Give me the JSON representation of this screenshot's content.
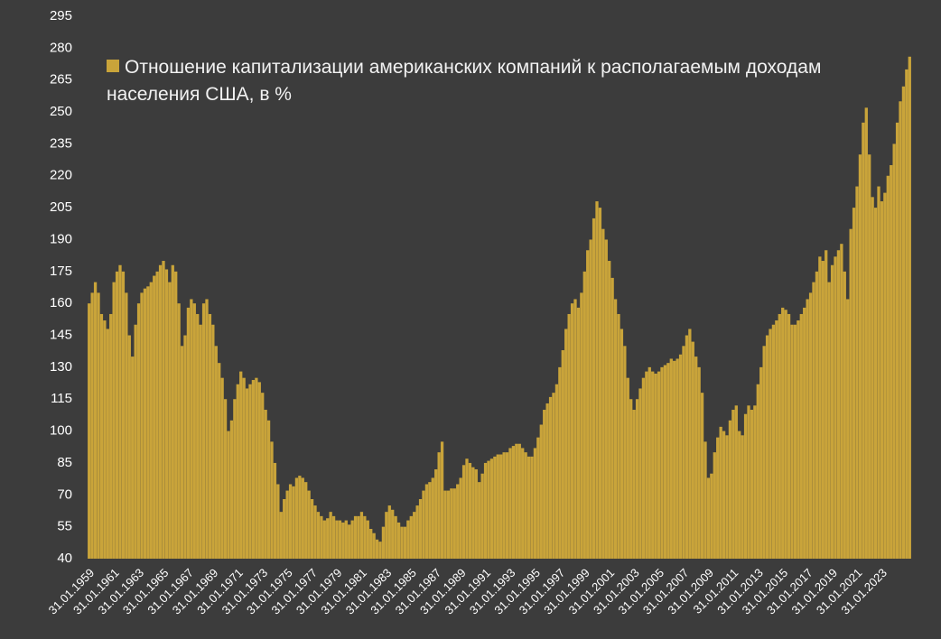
{
  "chart_data": {
    "type": "bar",
    "categories": [
      "31.01.1959",
      null,
      null,
      null,
      null,
      null,
      null,
      null,
      "31.01.1961",
      null,
      null,
      null,
      null,
      null,
      null,
      null,
      "31.01.1963",
      null,
      null,
      null,
      null,
      null,
      null,
      null,
      "31.01.1965",
      null,
      null,
      null,
      null,
      null,
      null,
      null,
      "31.01.1967",
      null,
      null,
      null,
      null,
      null,
      null,
      null,
      "31.01.1969",
      null,
      null,
      null,
      null,
      null,
      null,
      null,
      "31.01.1971",
      null,
      null,
      null,
      null,
      null,
      null,
      null,
      "31.01.1973",
      null,
      null,
      null,
      null,
      null,
      null,
      null,
      "31.01.1975",
      null,
      null,
      null,
      null,
      null,
      null,
      null,
      "31.01.1977",
      null,
      null,
      null,
      null,
      null,
      null,
      null,
      "31.01.1979",
      null,
      null,
      null,
      null,
      null,
      null,
      null,
      "31.01.1981",
      null,
      null,
      null,
      null,
      null,
      null,
      null,
      "31.01.1983",
      null,
      null,
      null,
      null,
      null,
      null,
      null,
      "31.01.1985",
      null,
      null,
      null,
      null,
      null,
      null,
      null,
      "31.01.1987",
      null,
      null,
      null,
      null,
      null,
      null,
      null,
      "31.01.1989",
      null,
      null,
      null,
      null,
      null,
      null,
      null,
      "31.01.1991",
      null,
      null,
      null,
      null,
      null,
      null,
      null,
      "31.01.1993",
      null,
      null,
      null,
      null,
      null,
      null,
      null,
      "31.01.1995",
      null,
      null,
      null,
      null,
      null,
      null,
      null,
      "31.01.1997",
      null,
      null,
      null,
      null,
      null,
      null,
      null,
      "31.01.1999",
      null,
      null,
      null,
      null,
      null,
      null,
      null,
      "31.01.2001",
      null,
      null,
      null,
      null,
      null,
      null,
      null,
      "31.01.2003",
      null,
      null,
      null,
      null,
      null,
      null,
      null,
      "31.01.2005",
      null,
      null,
      null,
      null,
      null,
      null,
      null,
      "31.01.2007",
      null,
      null,
      null,
      null,
      null,
      null,
      null,
      "31.01.2009",
      null,
      null,
      null,
      null,
      null,
      null,
      null,
      "31.01.2011",
      null,
      null,
      null,
      null,
      null,
      null,
      null,
      "31.01.2013",
      null,
      null,
      null,
      null,
      null,
      null,
      null,
      "31.01.2015",
      null,
      null,
      null,
      null,
      null,
      null,
      null,
      "31.01.2017",
      null,
      null,
      null,
      null,
      null,
      null,
      null,
      "31.01.2019",
      null,
      null,
      null,
      null,
      null,
      null,
      null,
      "31.01.2021",
      null,
      null,
      null,
      null,
      null,
      null,
      null,
      "31.01.2023",
      null,
      null,
      null,
      null,
      null,
      null,
      null,
      null,
      null
    ],
    "series": [
      {
        "name": "Отношение капитализации американских компаний к располагаемым доходам населения США, в %",
        "color": "#c9a43a",
        "values": [
          160,
          165,
          170,
          165,
          155,
          152,
          148,
          155,
          170,
          175,
          178,
          175,
          165,
          145,
          135,
          150,
          160,
          165,
          167,
          168,
          170,
          173,
          175,
          178,
          180,
          176,
          170,
          178,
          175,
          160,
          140,
          145,
          158,
          162,
          160,
          155,
          150,
          160,
          162,
          155,
          150,
          140,
          132,
          125,
          115,
          100,
          105,
          115,
          122,
          128,
          125,
          120,
          122,
          124,
          125,
          123,
          118,
          110,
          105,
          95,
          85,
          75,
          62,
          68,
          72,
          75,
          74,
          78,
          79,
          78,
          76,
          72,
          68,
          65,
          62,
          60,
          58,
          59,
          62,
          60,
          58,
          58,
          57,
          58,
          56,
          58,
          60,
          60,
          62,
          60,
          58,
          54,
          52,
          49,
          48,
          55,
          62,
          65,
          63,
          60,
          57,
          55,
          55,
          58,
          60,
          62,
          65,
          68,
          72,
          75,
          76,
          78,
          82,
          90,
          95,
          72,
          72,
          73,
          73,
          75,
          78,
          84,
          87,
          85,
          83,
          82,
          76,
          80,
          85,
          86,
          87,
          88,
          89,
          89,
          90,
          90,
          92,
          93,
          94,
          94,
          92,
          90,
          88,
          88,
          92,
          97,
          103,
          110,
          113,
          116,
          118,
          122,
          130,
          138,
          148,
          155,
          160,
          162,
          158,
          165,
          175,
          185,
          190,
          200,
          208,
          205,
          195,
          190,
          180,
          172,
          162,
          155,
          148,
          140,
          125,
          115,
          110,
          115,
          120,
          125,
          128,
          130,
          128,
          127,
          128,
          130,
          131,
          132,
          134,
          133,
          134,
          136,
          140,
          145,
          148,
          142,
          135,
          130,
          118,
          95,
          78,
          80,
          90,
          97,
          102,
          100,
          98,
          105,
          110,
          112,
          100,
          98,
          108,
          112,
          110,
          112,
          122,
          130,
          140,
          145,
          148,
          150,
          152,
          155,
          158,
          157,
          155,
          150,
          150,
          152,
          155,
          158,
          162,
          165,
          170,
          175,
          182,
          180,
          185,
          170,
          178,
          182,
          185,
          188,
          175,
          162,
          195,
          205,
          215,
          230,
          245,
          252,
          230,
          210,
          205,
          215,
          208,
          212,
          220,
          225,
          235,
          245,
          255,
          262,
          270,
          276
        ]
      }
    ],
    "ylim": [
      40,
      295
    ],
    "yticks": [
      40,
      55,
      70,
      85,
      100,
      115,
      130,
      145,
      160,
      175,
      190,
      205,
      220,
      235,
      250,
      265,
      280,
      295
    ],
    "grid": false,
    "legend": "top-left"
  }
}
